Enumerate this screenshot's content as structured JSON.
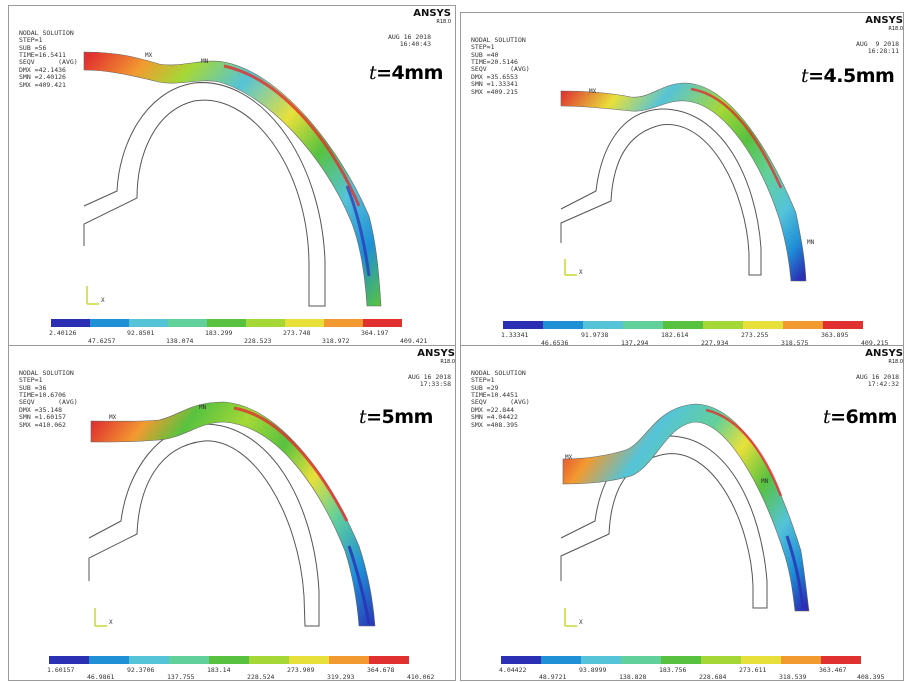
{
  "brand": {
    "name": "ANSYS",
    "version": "R18.0"
  },
  "palette": [
    "#2a2fb4",
    "#1f8fd6",
    "#55c3d8",
    "#62d09a",
    "#58c240",
    "#a5d836",
    "#e8e03a",
    "#f29a30",
    "#e03030"
  ],
  "panels": [
    {
      "header": [
        "NODAL SOLUTION",
        "",
        "STEP=1",
        "SUB =56",
        "TIME=16.5411",
        "SEQV      (AVG)",
        "DMX =42.1436",
        "SMN =2.40126",
        "SMX =409.421"
      ],
      "date": "AUG 16 2018",
      "time": "16:40:43",
      "label_var": "t",
      "label_value": "=4mm",
      "legend_top": [
        "2.40126",
        "92.8501",
        "183.299",
        "273.748",
        "364.197"
      ],
      "legend_bottom": [
        "47.6257",
        "138.074",
        "228.523",
        "318.972",
        "409.421"
      ]
    },
    {
      "header": [
        "NODAL SOLUTION",
        "",
        "STEP=1",
        "SUB =40",
        "TIME=20.5146",
        "SEQV      (AVG)",
        "DMX =35.6553",
        "SMN =1.33341",
        "SMX =409.215"
      ],
      "date": "AUG  9 2018",
      "time": "16:28:11",
      "label_var": "t",
      "label_value": "=4.5mm",
      "legend_top": [
        "1.33341",
        "91.9738",
        "182.614",
        "273.255",
        "363.895"
      ],
      "legend_bottom": [
        "46.6536",
        "137.294",
        "227.934",
        "318.575",
        "409.215"
      ]
    },
    {
      "header": [
        "NODAL SOLUTION",
        "",
        "STEP=1",
        "SUB =36",
        "TIME=10.6706",
        "SEQV      (AVG)",
        "DMX =35.148",
        "SMN =1.60157",
        "SMX =410.062"
      ],
      "date": "AUG 16 2018",
      "time": "17:33:58",
      "label_var": "t",
      "label_value": "=5mm",
      "legend_top": [
        "1.60157",
        "92.3706",
        "183.14",
        "273.909",
        "364.678"
      ],
      "legend_bottom": [
        "46.9861",
        "137.755",
        "228.524",
        "319.293",
        "410.062"
      ]
    },
    {
      "header": [
        "NODAL SOLUTION",
        "",
        "STEP=1",
        "SUB =29",
        "TIME=10.4451",
        "SEQV      (AVG)",
        "DMX =22.844",
        "SMN =4.04422",
        "SMX =408.395"
      ],
      "date": "AUG 16 2018",
      "time": "17:42:32",
      "label_var": "t",
      "label_value": "=6mm",
      "legend_top": [
        "4.04422",
        "93.8999",
        "183.756",
        "273.611",
        "363.467"
      ],
      "legend_bottom": [
        "48.9721",
        "138.828",
        "228.684",
        "318.539",
        "408.395"
      ]
    }
  ],
  "marker_mx": "MX",
  "marker_mn": "MN",
  "axis_x": "X"
}
